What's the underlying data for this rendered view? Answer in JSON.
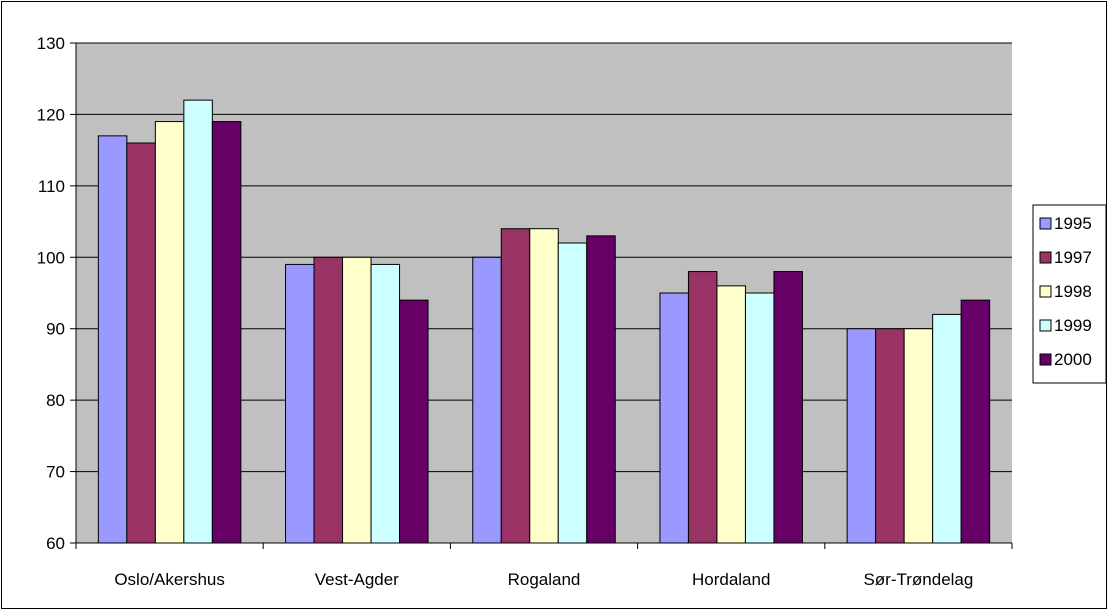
{
  "chart_data": {
    "type": "bar",
    "title": "",
    "xlabel": "",
    "ylabel": "",
    "categories": [
      "Oslo/Akershus",
      "Vest-Agder",
      "Rogaland",
      "Hordaland",
      "Sør-Trøndelag"
    ],
    "series": [
      {
        "name": "1995",
        "values": [
          117,
          99,
          100,
          95,
          90
        ],
        "color": "#9999FF"
      },
      {
        "name": "1997",
        "values": [
          116,
          100,
          104,
          98,
          90
        ],
        "color": "#993366"
      },
      {
        "name": "1998",
        "values": [
          119,
          100,
          104,
          96,
          90
        ],
        "color": "#FFFFCC"
      },
      {
        "name": "1999",
        "values": [
          122,
          99,
          102,
          95,
          92
        ],
        "color": "#CCFFFF"
      },
      {
        "name": "2000",
        "values": [
          119,
          94,
          103,
          98,
          94
        ],
        "color": "#660066"
      }
    ],
    "ylim": [
      60,
      130
    ],
    "yticks": [
      60,
      70,
      80,
      90,
      100,
      110,
      120,
      130
    ],
    "grid": true,
    "plot_background": "#C0C0C0",
    "legend_position": "right"
  }
}
